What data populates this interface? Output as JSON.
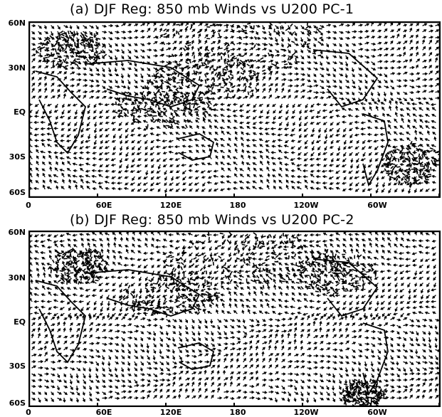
{
  "figure": {
    "panels": [
      {
        "id": "a",
        "title": "(a) DJF Reg: 850 mb Winds vs U200 PC-1",
        "lat_labels": [
          "60N",
          "30N",
          "EQ",
          "30S",
          "60S"
        ],
        "lon_labels": [
          "0",
          "60E",
          "120E",
          "180",
          "120W",
          "60W"
        ]
      },
      {
        "id": "b",
        "title": "(b) DJF Reg: 850 mb Winds vs U200 PC-2",
        "lat_labels": [
          "60N",
          "30N",
          "EQ",
          "30S",
          "60S"
        ],
        "lon_labels": [
          "0",
          "60E",
          "120E",
          "180",
          "120W",
          "60W"
        ]
      }
    ],
    "colors": {
      "ink": "#000000",
      "background": "#ffffff"
    },
    "field": "850 mb wind vectors (regression)",
    "lat_range": [
      -60,
      60
    ],
    "lon_range": [
      0,
      360
    ]
  }
}
